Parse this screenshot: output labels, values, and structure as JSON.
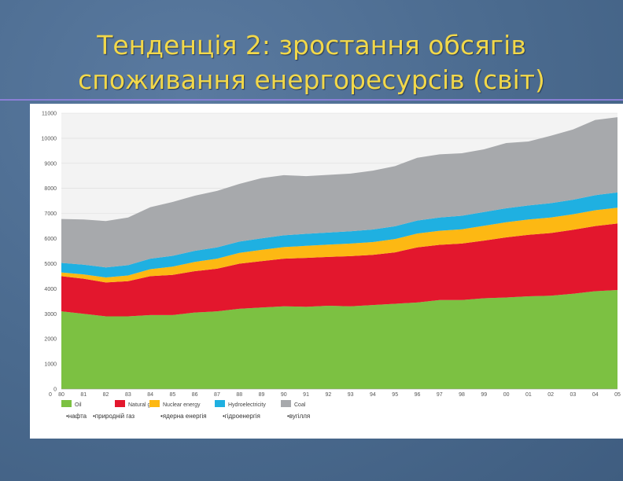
{
  "slide": {
    "title_line1": "Тенденція 2: зростання обсягів",
    "title_line2": "споживання енергоресурсів (світ)"
  },
  "colors": {
    "oil": "#7cc142",
    "natural_gas": "#e3172d",
    "nuclear": "#fdb813",
    "hydro": "#1fb0e1",
    "coal": "#a7a9ac",
    "title": "#f2d84a",
    "background": "#4a6a8e"
  },
  "chart_data": {
    "type": "area",
    "stacked": true,
    "title": "",
    "xlabel": "",
    "ylabel": "",
    "ylim": [
      0,
      11000
    ],
    "y_ticks": [
      "0",
      "1000",
      "2000",
      "3000",
      "4000",
      "5000",
      "6000",
      "7000",
      "8000",
      "9000",
      "10000",
      "11000"
    ],
    "x": [
      "80",
      "81",
      "82",
      "83",
      "84",
      "85",
      "86",
      "87",
      "88",
      "89",
      "90",
      "91",
      "92",
      "93",
      "94",
      "95",
      "96",
      "97",
      "98",
      "99",
      "00",
      "01",
      "02",
      "03",
      "04",
      "05"
    ],
    "series": [
      {
        "name": "Oil",
        "ua_label": "нафта",
        "color_key": "oil",
        "values": [
          3100,
          3000,
          2900,
          2900,
          2950,
          2950,
          3050,
          3100,
          3200,
          3250,
          3300,
          3280,
          3320,
          3300,
          3350,
          3400,
          3450,
          3550,
          3550,
          3620,
          3650,
          3700,
          3720,
          3800,
          3900,
          3950
        ]
      },
      {
        "name": "Natural gas",
        "ua_label": "природній газ",
        "color_key": "natural_gas",
        "values": [
          1400,
          1400,
          1350,
          1400,
          1550,
          1600,
          1650,
          1700,
          1800,
          1850,
          1900,
          1950,
          1950,
          2000,
          2000,
          2050,
          2200,
          2200,
          2250,
          2300,
          2400,
          2450,
          2500,
          2550,
          2600,
          2650
        ]
      },
      {
        "name": "Nuclear energy",
        "ua_label": "ядерна енергія",
        "color_key": "nuclear",
        "values": [
          150,
          170,
          200,
          230,
          280,
          330,
          370,
          400,
          430,
          450,
          460,
          480,
          490,
          500,
          510,
          530,
          550,
          560,
          570,
          590,
          600,
          610,
          620,
          620,
          630,
          630
        ]
      },
      {
        "name": "Hydroelectricity",
        "ua_label": "гідроенергія",
        "color_key": "hydro",
        "values": [
          380,
          390,
          400,
          410,
          420,
          430,
          440,
          450,
          450,
          460,
          470,
          480,
          480,
          490,
          500,
          510,
          520,
          530,
          540,
          550,
          560,
          560,
          570,
          580,
          600,
          610
        ]
      },
      {
        "name": "Coal",
        "ua_label": "вугілля",
        "color_key": "coal",
        "values": [
          1750,
          1800,
          1850,
          1900,
          2050,
          2150,
          2200,
          2250,
          2300,
          2400,
          2400,
          2300,
          2300,
          2300,
          2350,
          2400,
          2500,
          2520,
          2490,
          2500,
          2600,
          2550,
          2690,
          2800,
          3000,
          3000
        ]
      }
    ]
  }
}
